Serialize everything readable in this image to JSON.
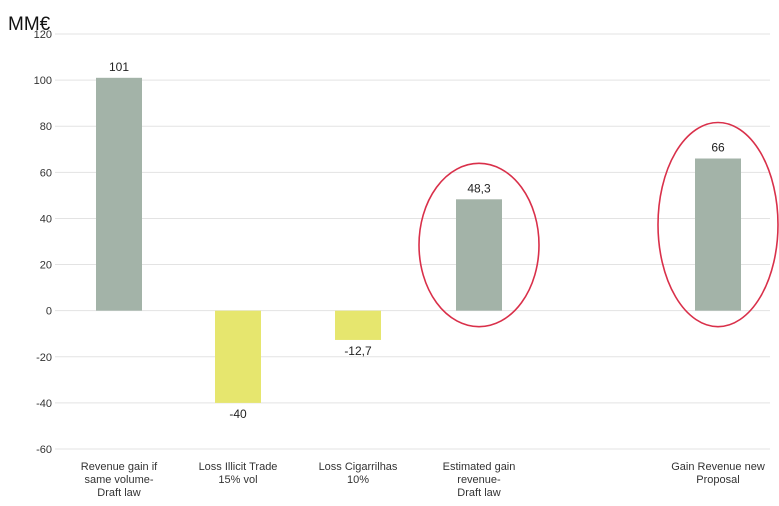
{
  "unit_label": "MM€",
  "colors": {
    "positive": "#a3b3a8",
    "negative": "#e6e66e",
    "highlight": "#d9304a",
    "grid": "#e3e3e3",
    "text": "#333333"
  },
  "chart_data": {
    "type": "bar",
    "title": "",
    "ylabel": "MM€",
    "ylim": [
      -60,
      120
    ],
    "yticks": [
      120,
      100,
      80,
      60,
      40,
      20,
      0,
      -20,
      -40,
      -60
    ],
    "grid": true,
    "categories": [
      [
        "Revenue gain if",
        "same volume-",
        "Draft law"
      ],
      [
        "Loss Illicit Trade",
        "15% vol"
      ],
      [
        "Loss Cigarrilhas",
        "10%"
      ],
      [
        "Estimated gain",
        "revenue-",
        "Draft law"
      ],
      [
        "Gain Revenue new",
        "Proposal"
      ]
    ],
    "values": [
      101,
      -40,
      -12.7,
      48.3,
      66
    ],
    "data_labels": [
      "101",
      "-40",
      "-12,7",
      "48,3",
      "66"
    ],
    "highlighted": [
      false,
      false,
      false,
      true,
      true
    ]
  }
}
